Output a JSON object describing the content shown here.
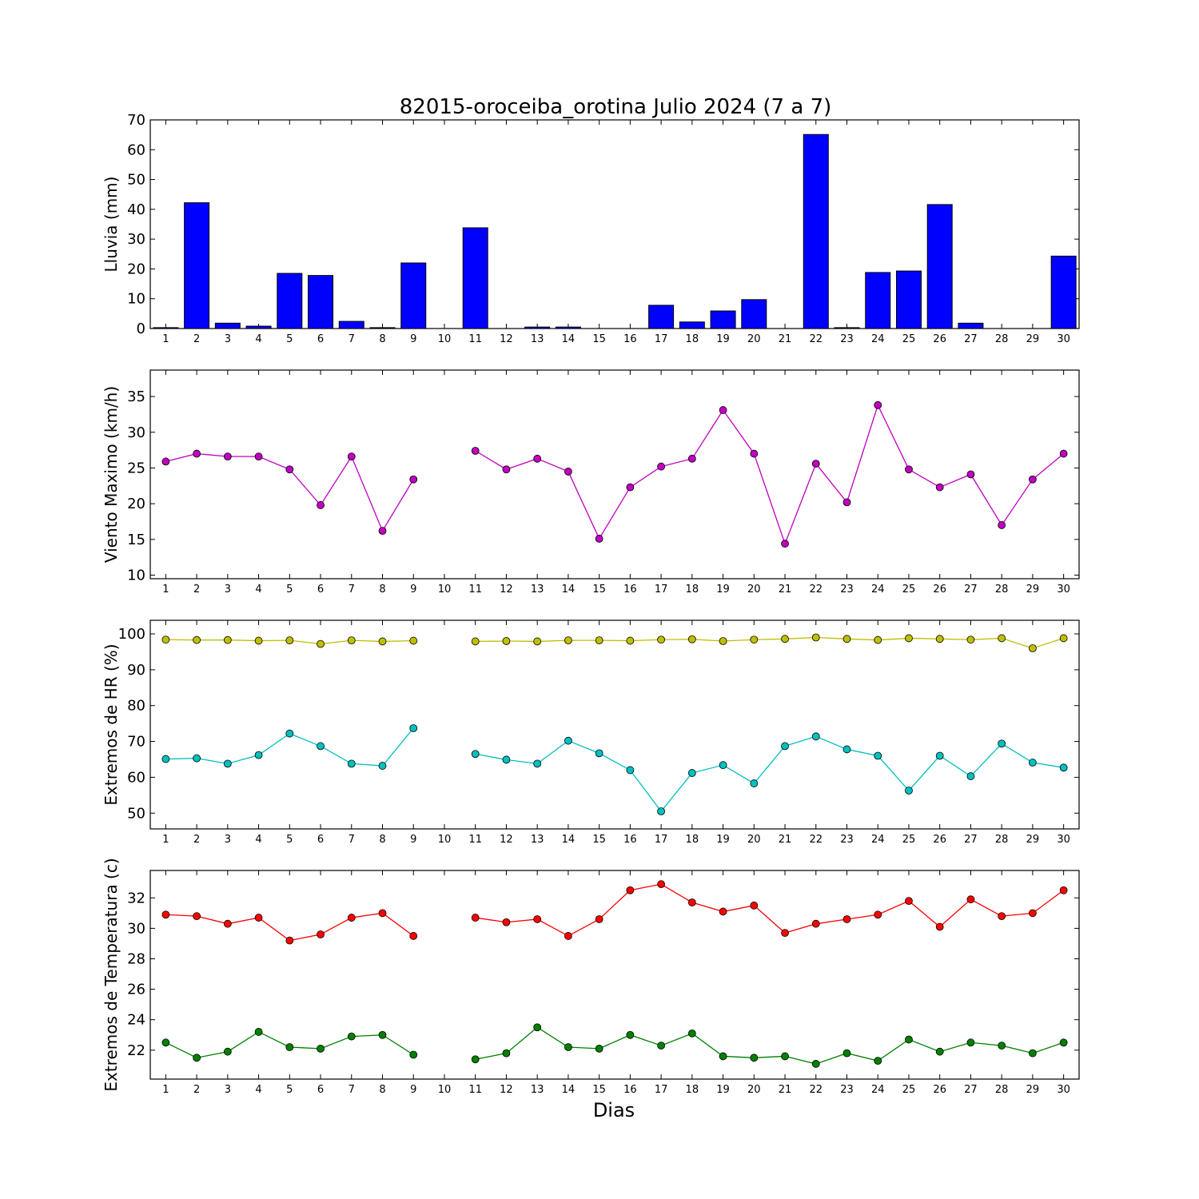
{
  "title": "82015-oroceiba_orotina Julio 2024  (7 a 7)",
  "xlabel": "Dias",
  "days": [
    1,
    2,
    3,
    4,
    5,
    6,
    7,
    8,
    9,
    10,
    11,
    12,
    13,
    14,
    15,
    16,
    17,
    18,
    19,
    20,
    21,
    22,
    23,
    24,
    25,
    26,
    27,
    28,
    29,
    30
  ],
  "chart_data": [
    {
      "type": "bar",
      "ylabel": "Lluvia (mm)",
      "ylim": [
        0,
        70
      ],
      "yticks": [
        0,
        10,
        20,
        30,
        40,
        50,
        60,
        70
      ],
      "categories": [
        1,
        2,
        3,
        4,
        5,
        6,
        7,
        8,
        9,
        10,
        11,
        12,
        13,
        14,
        15,
        16,
        17,
        18,
        19,
        20,
        21,
        22,
        23,
        24,
        25,
        26,
        27,
        28,
        29,
        30
      ],
      "series": [
        {
          "color": "#0000ff",
          "values": [
            0.3,
            42.2,
            1.8,
            0.8,
            18.5,
            17.8,
            2.4,
            0.3,
            22.0,
            0,
            33.8,
            0,
            0.5,
            0.5,
            0,
            0,
            7.8,
            2.2,
            5.9,
            9.7,
            0,
            65.1,
            0.3,
            18.8,
            19.3,
            41.6,
            1.8,
            0,
            0,
            24.3
          ]
        }
      ]
    },
    {
      "type": "line",
      "ylabel": "Viento Maximo (km/h)",
      "ylim": [
        9.5,
        38.7
      ],
      "yticks": [
        10,
        15,
        20,
        25,
        30,
        35
      ],
      "x": [
        1,
        2,
        3,
        4,
        5,
        6,
        7,
        8,
        9,
        10,
        11,
        12,
        13,
        14,
        15,
        16,
        17,
        18,
        19,
        20,
        21,
        22,
        23,
        24,
        25,
        26,
        27,
        28,
        29,
        30
      ],
      "series": [
        {
          "color": "#bf00bf",
          "values": [
            25.9,
            27.0,
            26.6,
            26.6,
            24.8,
            19.8,
            26.6,
            16.2,
            23.4,
            null,
            27.4,
            24.8,
            26.3,
            24.5,
            15.1,
            22.3,
            25.2,
            26.3,
            33.1,
            27.0,
            14.4,
            25.6,
            20.2,
            33.8,
            24.8,
            22.3,
            24.1,
            17.0,
            23.4,
            27.0
          ]
        }
      ]
    },
    {
      "type": "line",
      "ylabel": "Extremos de HR (%)",
      "ylim": [
        45.6,
        103.8
      ],
      "yticks": [
        50,
        60,
        70,
        80,
        90,
        100
      ],
      "x": [
        1,
        2,
        3,
        4,
        5,
        6,
        7,
        8,
        9,
        10,
        11,
        12,
        13,
        14,
        15,
        16,
        17,
        18,
        19,
        20,
        21,
        22,
        23,
        24,
        25,
        26,
        27,
        28,
        29,
        30
      ],
      "series": [
        {
          "color": "#bfbf00",
          "values": [
            98.4,
            98.3,
            98.3,
            98.1,
            98.2,
            97.2,
            98.2,
            97.9,
            98.1,
            null,
            97.9,
            98.0,
            97.9,
            98.2,
            98.2,
            98.1,
            98.4,
            98.5,
            98.0,
            98.4,
            98.6,
            99.0,
            98.6,
            98.3,
            98.8,
            98.6,
            98.4,
            98.8,
            96.0,
            98.8
          ]
        },
        {
          "color": "#00bfbf",
          "values": [
            65.1,
            65.3,
            63.8,
            66.2,
            72.2,
            68.7,
            63.8,
            63.2,
            73.7,
            null,
            66.5,
            64.9,
            63.8,
            70.2,
            66.7,
            62.0,
            50.5,
            61.2,
            63.4,
            58.3,
            68.7,
            71.4,
            67.8,
            66.0,
            56.3,
            66.0,
            60.3,
            69.4,
            64.1,
            62.7
          ]
        }
      ]
    },
    {
      "type": "line",
      "ylabel": "Extremos de Temperatura (c)",
      "ylim": [
        20.1,
        33.8
      ],
      "yticks": [
        22,
        24,
        26,
        28,
        30,
        32
      ],
      "x": [
        1,
        2,
        3,
        4,
        5,
        6,
        7,
        8,
        9,
        10,
        11,
        12,
        13,
        14,
        15,
        16,
        17,
        18,
        19,
        20,
        21,
        22,
        23,
        24,
        25,
        26,
        27,
        28,
        29,
        30
      ],
      "series": [
        {
          "color": "#ff0000",
          "values": [
            30.9,
            30.8,
            30.3,
            30.7,
            29.2,
            29.6,
            30.7,
            31.0,
            29.5,
            null,
            30.7,
            30.4,
            30.6,
            29.5,
            30.6,
            32.5,
            32.9,
            31.7,
            31.1,
            31.5,
            29.7,
            30.3,
            30.6,
            30.9,
            31.8,
            30.1,
            31.9,
            30.8,
            31.0,
            32.5
          ]
        },
        {
          "color": "#008000",
          "values": [
            22.5,
            21.5,
            21.9,
            23.2,
            22.2,
            22.1,
            22.9,
            23.0,
            21.7,
            null,
            21.4,
            21.8,
            23.5,
            22.2,
            22.1,
            23.0,
            22.3,
            23.1,
            21.6,
            21.5,
            21.6,
            21.1,
            21.8,
            21.3,
            22.7,
            21.9,
            22.5,
            22.3,
            21.8,
            22.5
          ]
        }
      ]
    }
  ]
}
